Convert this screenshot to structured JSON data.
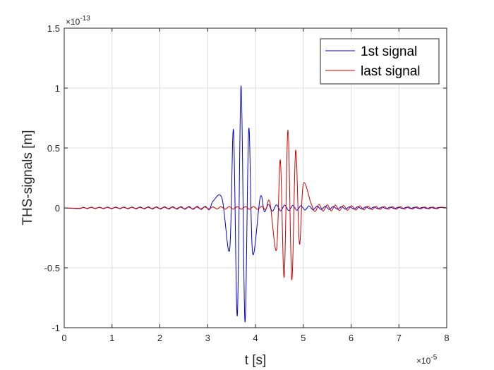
{
  "chart_data": {
    "type": "line",
    "xlabel": "t [s]",
    "ylabel": "THS-signals [m]",
    "x_exponent_base": "×10",
    "x_exponent_power": "-5",
    "y_exponent_base": "×10",
    "y_exponent_power": "-13",
    "xlim": [
      0,
      8
    ],
    "ylim": [
      -1,
      1.5
    ],
    "x_ticks": [
      "0",
      "1",
      "2",
      "3",
      "4",
      "5",
      "6",
      "7",
      "8"
    ],
    "y_ticks": [
      "-1",
      "-0.5",
      "0",
      "0.5",
      "1",
      "1.5"
    ],
    "grid": true,
    "legend_position": "top-right",
    "series": [
      {
        "name": "1st signal",
        "color": "#0000cc",
        "peak_times": [
          3.12,
          3.3,
          3.46,
          3.54,
          3.62,
          3.7,
          3.78,
          3.86,
          3.94,
          4.1
        ],
        "peak_values": [
          0.06,
          0.08,
          -0.35,
          0.65,
          -0.9,
          1.02,
          -0.95,
          0.66,
          -0.38,
          0.09
        ]
      },
      {
        "name": "last signal",
        "color": "#cc0000",
        "peak_times": [
          4.3,
          4.44,
          4.52,
          4.6,
          4.68,
          4.76,
          4.84,
          4.92,
          5.0,
          5.16
        ],
        "peak_values": [
          0.05,
          -0.35,
          0.4,
          -0.58,
          0.65,
          -0.6,
          0.48,
          -0.3,
          0.2,
          0.04
        ]
      }
    ]
  }
}
